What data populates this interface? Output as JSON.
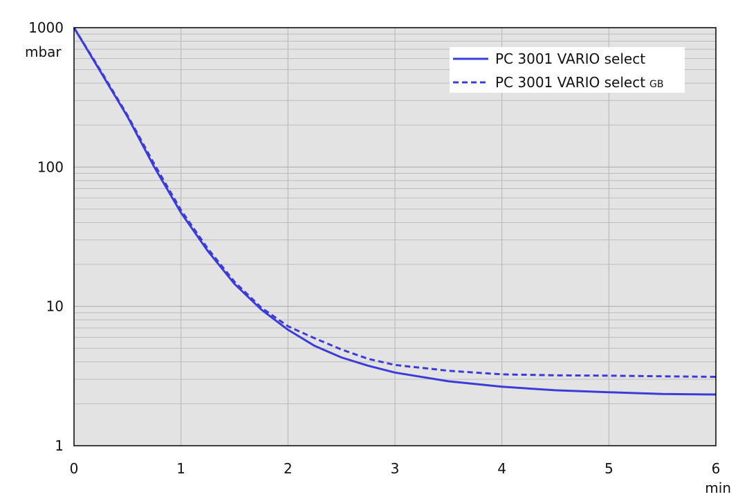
{
  "chart_data": {
    "type": "line",
    "title": "",
    "xlabel": "",
    "ylabel": "",
    "x_unit": "min",
    "y_unit": "mbar",
    "xlim": [
      0,
      6
    ],
    "ylim": [
      1,
      1000
    ],
    "y_scale": "log",
    "grid": true,
    "legend_position": "top-right",
    "x_ticks": [
      "0",
      "1",
      "2",
      "3",
      "4",
      "5",
      "6"
    ],
    "y_ticks": [
      "1",
      "10",
      "100",
      "1000"
    ],
    "series": [
      {
        "name": "PC 3001 VARIO select",
        "name_suffix": "",
        "style": "solid",
        "color": "#3b3bdb",
        "x": [
          0,
          0.25,
          0.5,
          0.75,
          1.0,
          1.25,
          1.5,
          1.75,
          2.0,
          2.25,
          2.5,
          2.75,
          3.0,
          3.5,
          4.0,
          4.5,
          5.0,
          5.5,
          6.0
        ],
        "y": [
          1000,
          480,
          230,
          100,
          47,
          25,
          14.5,
          9.5,
          6.8,
          5.2,
          4.3,
          3.75,
          3.35,
          2.9,
          2.65,
          2.5,
          2.42,
          2.35,
          2.33
        ]
      },
      {
        "name": "PC 3001 VARIO select",
        "name_suffix": "GB",
        "style": "dashed",
        "color": "#3b3bdb",
        "x": [
          0,
          0.25,
          0.5,
          0.75,
          1.0,
          1.25,
          1.5,
          1.75,
          2.0,
          2.25,
          2.5,
          2.75,
          3.0,
          3.5,
          4.0,
          4.5,
          5.0,
          5.5,
          6.0
        ],
        "y": [
          1000,
          490,
          235,
          105,
          49,
          26,
          15,
          9.8,
          7.2,
          5.9,
          4.9,
          4.2,
          3.8,
          3.45,
          3.25,
          3.2,
          3.18,
          3.15,
          3.12
        ]
      }
    ]
  }
}
